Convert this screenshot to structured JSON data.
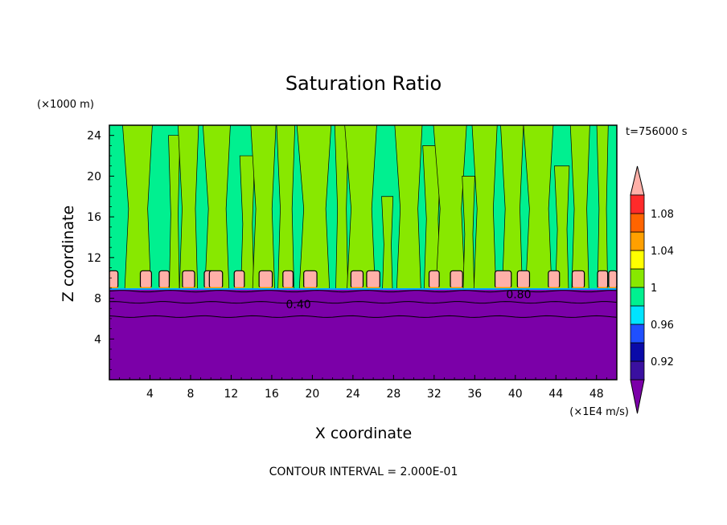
{
  "chart_data": {
    "type": "heatmap",
    "title": "Saturation Ratio",
    "xlabel": "X coordinate",
    "ylabel": "Z coordinate",
    "x_unit": "(×1E4 m/s)",
    "y_unit": "(×1000 m)",
    "time_label": "t=756000 s",
    "footer": "CONTOUR INTERVAL = 2.000E-01",
    "xlim": [
      0,
      50
    ],
    "ylim": [
      0,
      25
    ],
    "xticks": [
      4,
      8,
      12,
      16,
      20,
      24,
      28,
      32,
      36,
      40,
      44,
      48
    ],
    "yticks": [
      4,
      8,
      12,
      16,
      20,
      24
    ],
    "contour_labels": [
      {
        "text": "0.40",
        "x": 18.5,
        "y": 7.4
      },
      {
        "text": "0.80",
        "x": 40.2,
        "y": 8.4
      }
    ],
    "colorbar": {
      "levels": [
        0.92,
        0.96,
        1,
        1.04,
        1.08
      ],
      "bands": [
        "#7b00a8",
        "#3a10a0",
        "#0a0aa8",
        "#1f4fff",
        "#00e4ff",
        "#00f090",
        "#88e800",
        "#ffff00",
        "#ffa000",
        "#ff6400",
        "#ff2a2a",
        "#ffb0a8"
      ]
    },
    "colors": {
      "dry_layer": "#7b00a8",
      "moist_layer": "#00f090",
      "near_saturation": "#88e800",
      "supersaturated": "#ffb0a8"
    }
  }
}
